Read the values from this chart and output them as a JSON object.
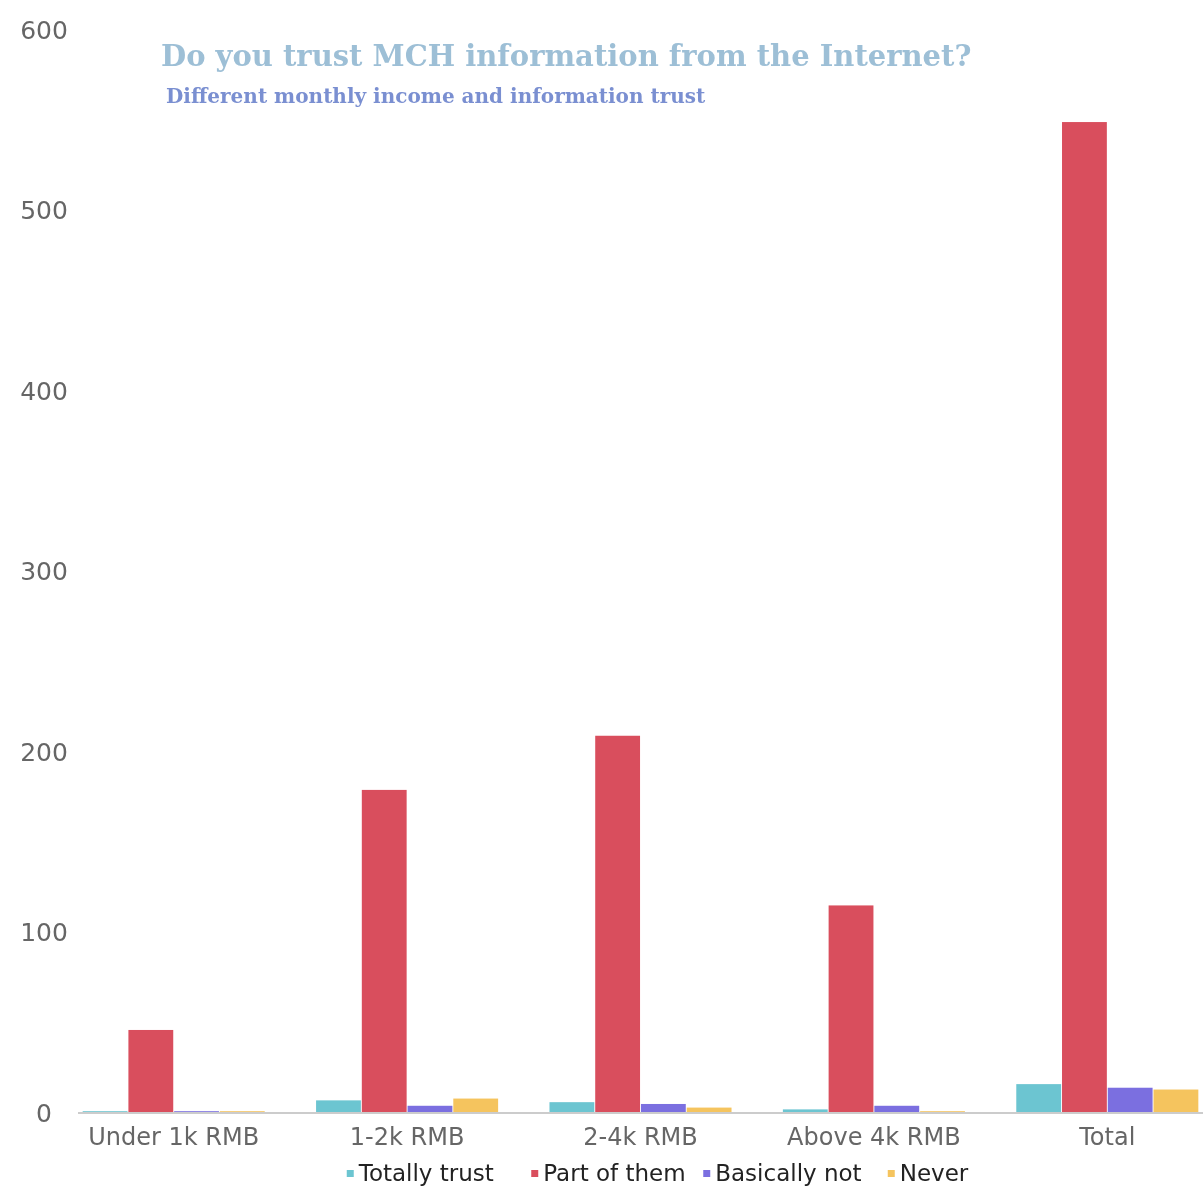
{
  "chart_data": {
    "type": "bar",
    "title": "Do you trust MCH information from the Internet?",
    "subtitle": "Different monthly income and information trust",
    "categories": [
      "Under 1k RMB",
      "1-2k RMB",
      "2-4k RMB",
      "Above 4k RMB",
      "Total"
    ],
    "series": [
      {
        "name": "Totally trust",
        "color": "#6cc5d1",
        "values": [
          1,
          7,
          6,
          2,
          16
        ]
      },
      {
        "name": "Part of them",
        "color": "#d94e5d",
        "values": [
          46,
          179,
          209,
          115,
          549
        ]
      },
      {
        "name": "Basically not",
        "color": "#7b6fe0",
        "values": [
          1,
          4,
          5,
          4,
          14
        ]
      },
      {
        "name": "Never",
        "color": "#f5c45e",
        "values": [
          1,
          8,
          3,
          1,
          13
        ]
      }
    ],
    "ylim": [
      0,
      600
    ],
    "yticks": [
      0,
      100,
      200,
      300,
      400,
      500,
      600
    ],
    "grid": false,
    "legend": "bottom"
  }
}
